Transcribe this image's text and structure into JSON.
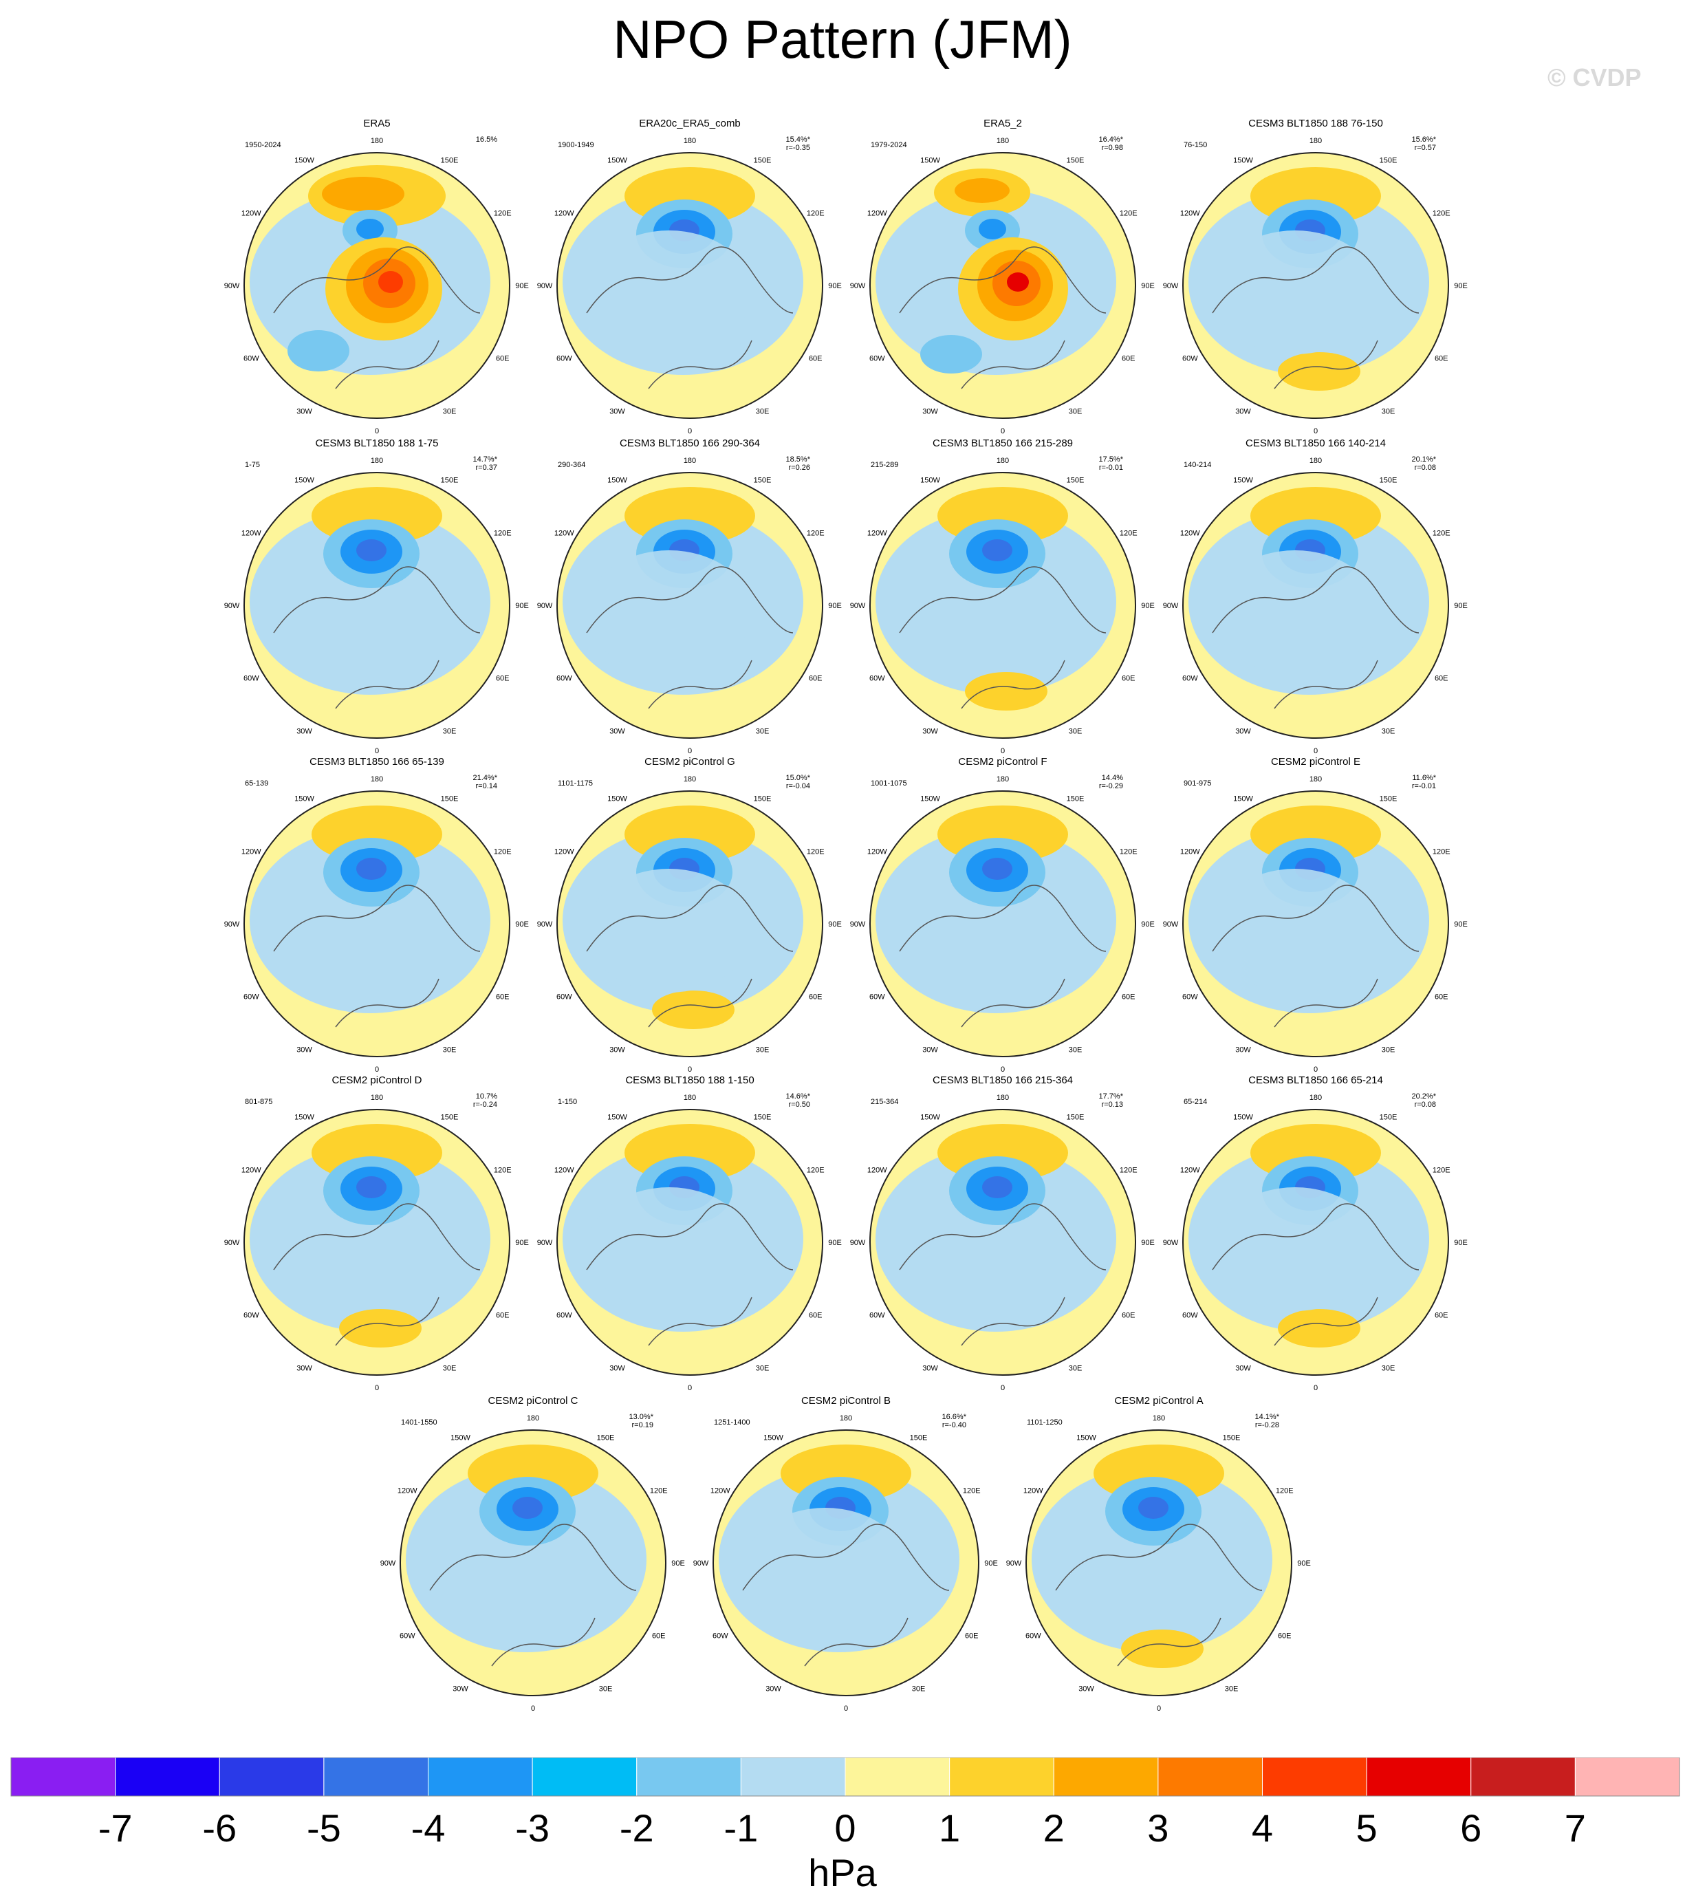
{
  "title": "NPO Pattern (JFM)",
  "watermark": "© CVDP",
  "units": "hPa",
  "lon_labels": [
    "180",
    "150E",
    "120E",
    "90E",
    "60E",
    "30E",
    "0",
    "30W",
    "60W",
    "90W",
    "120W",
    "150W"
  ],
  "colorbar": {
    "labels": [
      "-7",
      "-6",
      "-5",
      "-4",
      "-3",
      "-2",
      "-1",
      "0",
      "1",
      "2",
      "3",
      "4",
      "5",
      "6",
      "7"
    ],
    "colors": [
      "#8a1ef2",
      "#1a00f5",
      "#2a3ae8",
      "#3473e6",
      "#1e96f5",
      "#00bcf5",
      "#78c8f0",
      "#b4dcf2",
      "#fdf59a",
      "#fdd22c",
      "#fda800",
      "#fd7a00",
      "#fd3c00",
      "#e60000",
      "#c81e1e",
      "#ffb4b4"
    ]
  },
  "panels": [
    {
      "title": "ERA5",
      "period": "1950-2024",
      "pct": "16.5%",
      "r": ""
    },
    {
      "title": "ERA20c_ERA5_comb",
      "period": "1900-1949",
      "pct": "15.4%*",
      "r": "r=-0.35"
    },
    {
      "title": "ERA5_2",
      "period": "1979-2024",
      "pct": "16.4%*",
      "r": "r=0.98"
    },
    {
      "title": "CESM3 BLT1850 188 76-150",
      "period": "76-150",
      "pct": "15.6%*",
      "r": "r=0.57"
    },
    {
      "title": "CESM3 BLT1850 188 1-75",
      "period": "1-75",
      "pct": "14.7%*",
      "r": "r=0.37"
    },
    {
      "title": "CESM3 BLT1850 166 290-364",
      "period": "290-364",
      "pct": "18.5%*",
      "r": "r=0.26"
    },
    {
      "title": "CESM3 BLT1850 166 215-289",
      "period": "215-289",
      "pct": "17.5%*",
      "r": "r=-0.01"
    },
    {
      "title": "CESM3 BLT1850 166 140-214",
      "period": "140-214",
      "pct": "20.1%*",
      "r": "r=0.08"
    },
    {
      "title": "CESM3 BLT1850 166 65-139",
      "period": "65-139",
      "pct": "21.4%*",
      "r": "r=0.14"
    },
    {
      "title": "CESM2 piControl G",
      "period": "1101-1175",
      "pct": "15.0%*",
      "r": "r=-0.04"
    },
    {
      "title": "CESM2 piControl F",
      "period": "1001-1075",
      "pct": "14.4%",
      "r": "r=-0.29"
    },
    {
      "title": "CESM2 piControl E",
      "period": "901-975",
      "pct": "11.6%*",
      "r": "r=-0.01"
    },
    {
      "title": "CESM2 piControl D",
      "period": "801-875",
      "pct": "10.7%",
      "r": "r=-0.24"
    },
    {
      "title": "CESM3 BLT1850 188 1-150",
      "period": "1-150",
      "pct": "14.6%*",
      "r": "r=0.50"
    },
    {
      "title": "CESM3 BLT1850 166 215-364",
      "period": "215-364",
      "pct": "17.7%*",
      "r": "r=0.13"
    },
    {
      "title": "CESM3 BLT1850 166 65-214",
      "period": "65-214",
      "pct": "20.2%*",
      "r": "r=0.08"
    },
    {
      "title": "CESM2 piControl C",
      "period": "1401-1550",
      "pct": "13.0%*",
      "r": "r=0.19"
    },
    {
      "title": "CESM2 piControl B",
      "period": "1251-1400",
      "pct": "16.6%*",
      "r": "r=-0.40"
    },
    {
      "title": "CESM2 piControl A",
      "period": "1101-1250",
      "pct": "14.1%*",
      "r": "r=-0.28"
    }
  ]
}
